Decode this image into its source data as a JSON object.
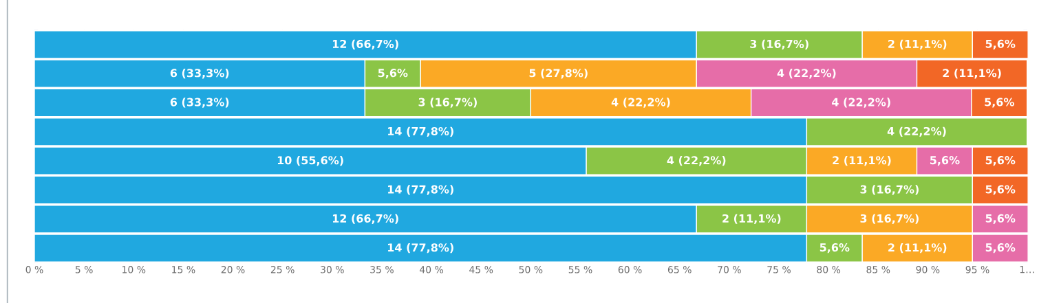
{
  "chart_data": {
    "type": "bar",
    "orientation": "horizontal",
    "stacked": true,
    "tick_labels": "x",
    "categories": [
      null,
      null,
      null,
      null,
      null,
      null,
      null,
      null
    ],
    "xlim": [
      0,
      100
    ],
    "xticks": [
      {
        "value": 0,
        "label": "0 %"
      },
      {
        "value": 5,
        "label": "5 %"
      },
      {
        "value": 10,
        "label": "10 %"
      },
      {
        "value": 15,
        "label": "15 %"
      },
      {
        "value": 20,
        "label": "20 %"
      },
      {
        "value": 25,
        "label": "25 %"
      },
      {
        "value": 30,
        "label": "30 %"
      },
      {
        "value": 35,
        "label": "35 %"
      },
      {
        "value": 40,
        "label": "40 %"
      },
      {
        "value": 45,
        "label": "45 %"
      },
      {
        "value": 50,
        "label": "50 %"
      },
      {
        "value": 55,
        "label": "55 %"
      },
      {
        "value": 60,
        "label": "60 %"
      },
      {
        "value": 65,
        "label": "65 %"
      },
      {
        "value": 70,
        "label": "70 %"
      },
      {
        "value": 75,
        "label": "75 %"
      },
      {
        "value": 80,
        "label": "80 %"
      },
      {
        "value": 85,
        "label": "85 %"
      },
      {
        "value": 90,
        "label": "90 %"
      },
      {
        "value": 95,
        "label": "95 %"
      },
      {
        "value": 100,
        "label": "1…"
      }
    ],
    "series": [
      {
        "color": "#20a8e0",
        "values": [
          66.7,
          33.3,
          33.3,
          77.8,
          55.6,
          77.8,
          66.7,
          77.8
        ],
        "value_labels": [
          "12 (66,7%)",
          "6 (33,3%)",
          "6 (33,3%)",
          "14 (77,8%)",
          "10 (55,6%)",
          "14 (77,8%)",
          "12 (66,7%)",
          "14 (77,8%)"
        ]
      },
      {
        "color": "#8bc546",
        "values": [
          16.7,
          5.6,
          16.7,
          22.2,
          22.2,
          16.7,
          11.1,
          5.6
        ],
        "value_labels": [
          "3 (16,7%)",
          "5,6%",
          "3 (16,7%)",
          "4 (22,2%)",
          "4 (22,2%)",
          "3 (16,7%)",
          "2 (11,1%)",
          "5,6%"
        ]
      },
      {
        "color": "#fba925",
        "values": [
          11.1,
          27.8,
          22.2,
          null,
          11.1,
          null,
          16.7,
          11.1
        ],
        "value_labels": [
          "2 (11,1%)",
          "5 (27,8%)",
          "4 (22,2%)",
          null,
          "2 (11,1%)",
          null,
          "3 (16,7%)",
          "2 (11,1%)"
        ]
      },
      {
        "color": "#e66da8",
        "values": [
          null,
          22.2,
          22.2,
          null,
          5.6,
          null,
          5.6,
          5.6
        ],
        "value_labels": [
          null,
          "4 (22,2%)",
          "4 (22,2%)",
          null,
          "5,6%",
          null,
          "5,6%",
          "5,6%"
        ]
      },
      {
        "color": "#f26726",
        "values": [
          5.6,
          11.1,
          5.6,
          null,
          5.6,
          5.6,
          null,
          null
        ],
        "value_labels": [
          "5,6%",
          "2 (11,1%)",
          "5,6%",
          null,
          "5,6%",
          "5,6%",
          null,
          null
        ]
      }
    ]
  }
}
